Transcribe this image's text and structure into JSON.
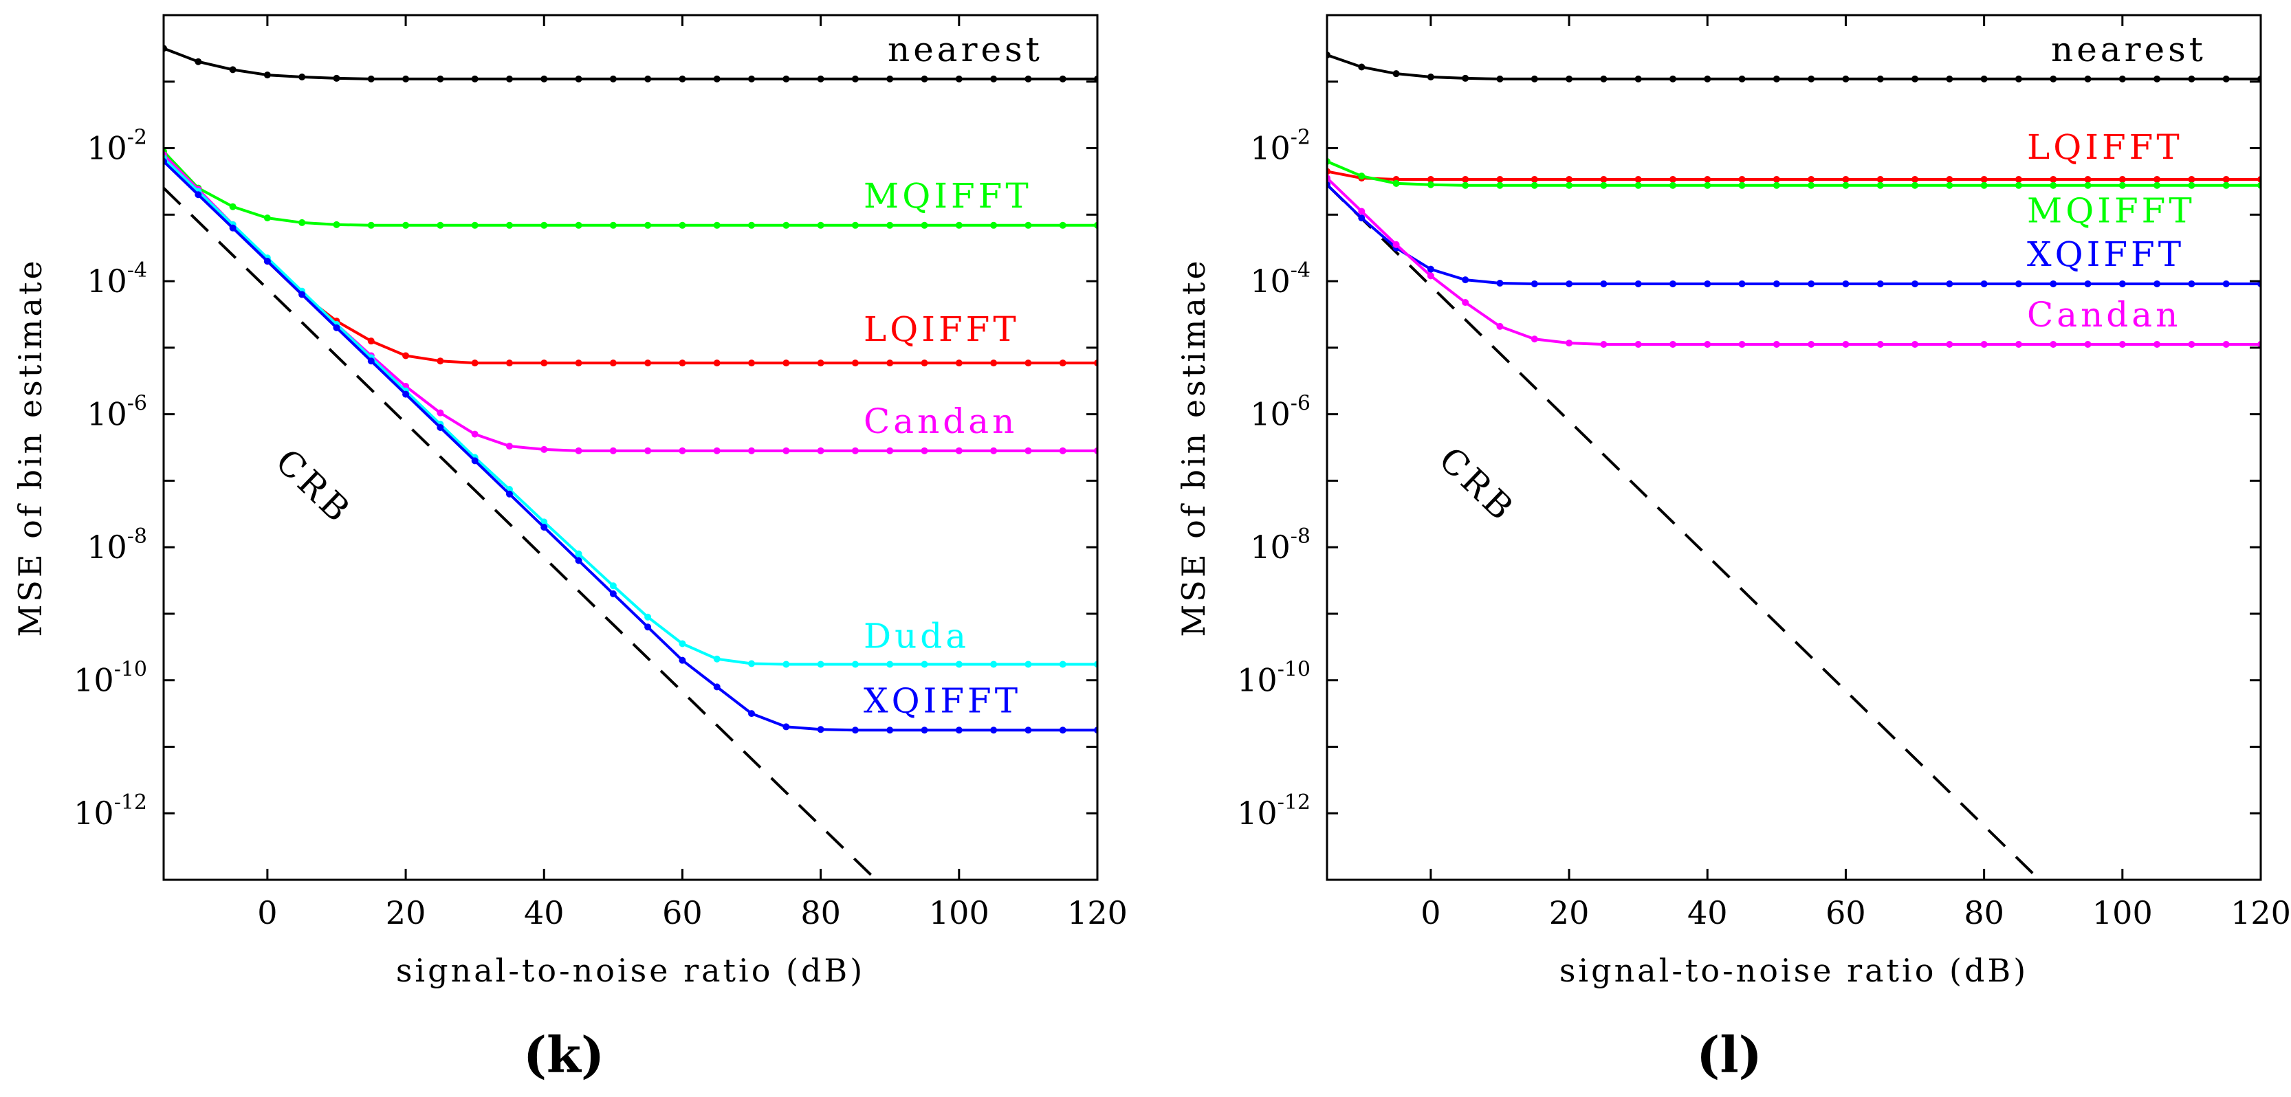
{
  "chart_data": [
    {
      "type": "line",
      "panel_label": "(k)",
      "xlabel": "signal-to-noise ratio (dB)",
      "ylabel": "MSE of bin estimate",
      "xlim": [
        -15,
        120
      ],
      "ylim_log10": [
        -13,
        0.0
      ],
      "xticks": [
        0,
        20,
        40,
        60,
        80,
        100,
        120
      ],
      "yticks": [
        {
          "base": "10",
          "exp": "-2"
        },
        {
          "base": "10",
          "exp": "-4"
        },
        {
          "base": "10",
          "exp": "-6"
        },
        {
          "base": "10",
          "exp": "-8"
        },
        {
          "base": "10",
          "exp": "-10"
        },
        {
          "base": "10",
          "exp": "-12"
        }
      ],
      "x": [
        -15,
        -10,
        -5,
        0,
        5,
        10,
        15,
        20,
        25,
        30,
        35,
        40,
        45,
        50,
        55,
        60,
        65,
        70,
        75,
        80,
        85,
        90,
        95,
        100,
        105,
        110,
        115,
        120
      ],
      "series": [
        {
          "name": "nearest",
          "color": "#000000",
          "log10": [
            -0.5,
            -0.7,
            -0.82,
            -0.9,
            -0.93,
            -0.95,
            -0.96,
            -0.96,
            -0.96,
            -0.96,
            -0.96,
            -0.96,
            -0.96,
            -0.96,
            -0.96,
            -0.96,
            -0.96,
            -0.96,
            -0.96,
            -0.96,
            -0.96,
            -0.96,
            -0.96,
            -0.96,
            -0.96,
            -0.96,
            -0.96,
            -0.96
          ]
        },
        {
          "name": "MQIFFT",
          "color": "#00ff00",
          "log10": [
            -2.05,
            -2.6,
            -2.88,
            -3.05,
            -3.12,
            -3.15,
            -3.16,
            -3.16,
            -3.16,
            -3.16,
            -3.16,
            -3.16,
            -3.16,
            -3.16,
            -3.16,
            -3.16,
            -3.16,
            -3.16,
            -3.16,
            -3.16,
            -3.16,
            -3.16,
            -3.16,
            -3.16,
            -3.16,
            -3.16,
            -3.16,
            -3.16
          ]
        },
        {
          "name": "LQIFFT",
          "color": "#ff0000",
          "log10": [
            -2.1,
            -2.62,
            -3.15,
            -3.7,
            -4.2,
            -4.6,
            -4.9,
            -5.12,
            -5.2,
            -5.23,
            -5.23,
            -5.23,
            -5.23,
            -5.23,
            -5.23,
            -5.23,
            -5.23,
            -5.23,
            -5.23,
            -5.23,
            -5.23,
            -5.23,
            -5.23,
            -5.23,
            -5.23,
            -5.23,
            -5.23,
            -5.23
          ]
        },
        {
          "name": "Candan",
          "color": "#ff00ff",
          "log10": [
            -2.1,
            -2.62,
            -3.15,
            -3.68,
            -4.17,
            -4.65,
            -5.12,
            -5.58,
            -5.98,
            -6.3,
            -6.48,
            -6.53,
            -6.55,
            -6.55,
            -6.55,
            -6.55,
            -6.55,
            -6.55,
            -6.55,
            -6.55,
            -6.55,
            -6.55,
            -6.55,
            -6.55,
            -6.55,
            -6.55,
            -6.55,
            -6.55
          ]
        },
        {
          "name": "Duda",
          "color": "#00ffff",
          "log10": [
            -2.15,
            -2.65,
            -3.15,
            -3.65,
            -4.15,
            -4.65,
            -5.15,
            -5.65,
            -6.15,
            -6.65,
            -7.13,
            -7.62,
            -8.1,
            -8.58,
            -9.05,
            -9.45,
            -9.68,
            -9.75,
            -9.76,
            -9.76,
            -9.76,
            -9.76,
            -9.76,
            -9.76,
            -9.76,
            -9.76,
            -9.76,
            -9.76
          ]
        },
        {
          "name": "XQIFFT",
          "color": "#0000ff",
          "log10": [
            -2.2,
            -2.7,
            -3.2,
            -3.7,
            -4.2,
            -4.7,
            -5.2,
            -5.7,
            -6.2,
            -6.7,
            -7.2,
            -7.7,
            -8.2,
            -8.7,
            -9.2,
            -9.7,
            -10.1,
            -10.5,
            -10.7,
            -10.74,
            -10.75,
            -10.75,
            -10.75,
            -10.75,
            -10.75,
            -10.75,
            -10.75,
            -10.75
          ]
        }
      ],
      "crb": {
        "name": "CRB",
        "log10_at_x": [
          [
            -15,
            -2.6
          ],
          [
            88,
            -13.0
          ]
        ]
      }
    },
    {
      "type": "line",
      "panel_label": "(l)",
      "xlabel": "signal-to-noise ratio (dB)",
      "ylabel": "MSE of bin estimate",
      "xlim": [
        -15,
        120
      ],
      "ylim_log10": [
        -13,
        0.0
      ],
      "xticks": [
        0,
        20,
        40,
        60,
        80,
        100,
        120
      ],
      "yticks": [
        {
          "base": "10",
          "exp": "-2"
        },
        {
          "base": "10",
          "exp": "-4"
        },
        {
          "base": "10",
          "exp": "-6"
        },
        {
          "base": "10",
          "exp": "-8"
        },
        {
          "base": "10",
          "exp": "-10"
        },
        {
          "base": "10",
          "exp": "-12"
        }
      ],
      "x": [
        -15,
        -10,
        -5,
        0,
        5,
        10,
        15,
        20,
        25,
        30,
        35,
        40,
        45,
        50,
        55,
        60,
        65,
        70,
        75,
        80,
        85,
        90,
        95,
        100,
        105,
        110,
        115,
        120
      ],
      "series": [
        {
          "name": "nearest",
          "color": "#000000",
          "log10": [
            -0.6,
            -0.78,
            -0.88,
            -0.93,
            -0.95,
            -0.96,
            -0.96,
            -0.96,
            -0.96,
            -0.96,
            -0.96,
            -0.96,
            -0.96,
            -0.96,
            -0.96,
            -0.96,
            -0.96,
            -0.96,
            -0.96,
            -0.96,
            -0.96,
            -0.96,
            -0.96,
            -0.96,
            -0.96,
            -0.96,
            -0.96,
            -0.96
          ]
        },
        {
          "name": "LQIFFT",
          "color": "#ff0000",
          "log10": [
            -2.35,
            -2.45,
            -2.47,
            -2.47,
            -2.47,
            -2.47,
            -2.47,
            -2.47,
            -2.47,
            -2.47,
            -2.47,
            -2.47,
            -2.47,
            -2.47,
            -2.47,
            -2.47,
            -2.47,
            -2.47,
            -2.47,
            -2.47,
            -2.47,
            -2.47,
            -2.47,
            -2.47,
            -2.47,
            -2.47,
            -2.47,
            -2.47
          ]
        },
        {
          "name": "MQIFFT",
          "color": "#00ff00",
          "log10": [
            -2.2,
            -2.42,
            -2.53,
            -2.55,
            -2.56,
            -2.56,
            -2.56,
            -2.56,
            -2.56,
            -2.56,
            -2.56,
            -2.56,
            -2.56,
            -2.56,
            -2.56,
            -2.56,
            -2.56,
            -2.56,
            -2.56,
            -2.56,
            -2.56,
            -2.56,
            -2.56,
            -2.56,
            -2.56,
            -2.56,
            -2.56,
            -2.56
          ]
        },
        {
          "name": "XQIFFT",
          "color": "#0000ff",
          "log10": [
            -2.55,
            -3.05,
            -3.5,
            -3.82,
            -3.98,
            -4.03,
            -4.04,
            -4.04,
            -4.04,
            -4.04,
            -4.04,
            -4.04,
            -4.04,
            -4.04,
            -4.04,
            -4.04,
            -4.04,
            -4.04,
            -4.04,
            -4.04,
            -4.04,
            -4.04,
            -4.04,
            -4.04,
            -4.04,
            -4.04,
            -4.04,
            -4.04
          ]
        },
        {
          "name": "Candan",
          "color": "#ff00ff",
          "log10": [
            -2.45,
            -2.95,
            -3.45,
            -3.92,
            -4.32,
            -4.68,
            -4.87,
            -4.93,
            -4.95,
            -4.95,
            -4.95,
            -4.95,
            -4.95,
            -4.95,
            -4.95,
            -4.95,
            -4.95,
            -4.95,
            -4.95,
            -4.95,
            -4.95,
            -4.95,
            -4.95,
            -4.95,
            -4.95,
            -4.95,
            -4.95,
            -4.95
          ]
        }
      ],
      "crb": {
        "name": "CRB",
        "log10_at_x": [
          [
            -15,
            -2.55
          ],
          [
            88,
            -13.0
          ]
        ]
      }
    }
  ]
}
